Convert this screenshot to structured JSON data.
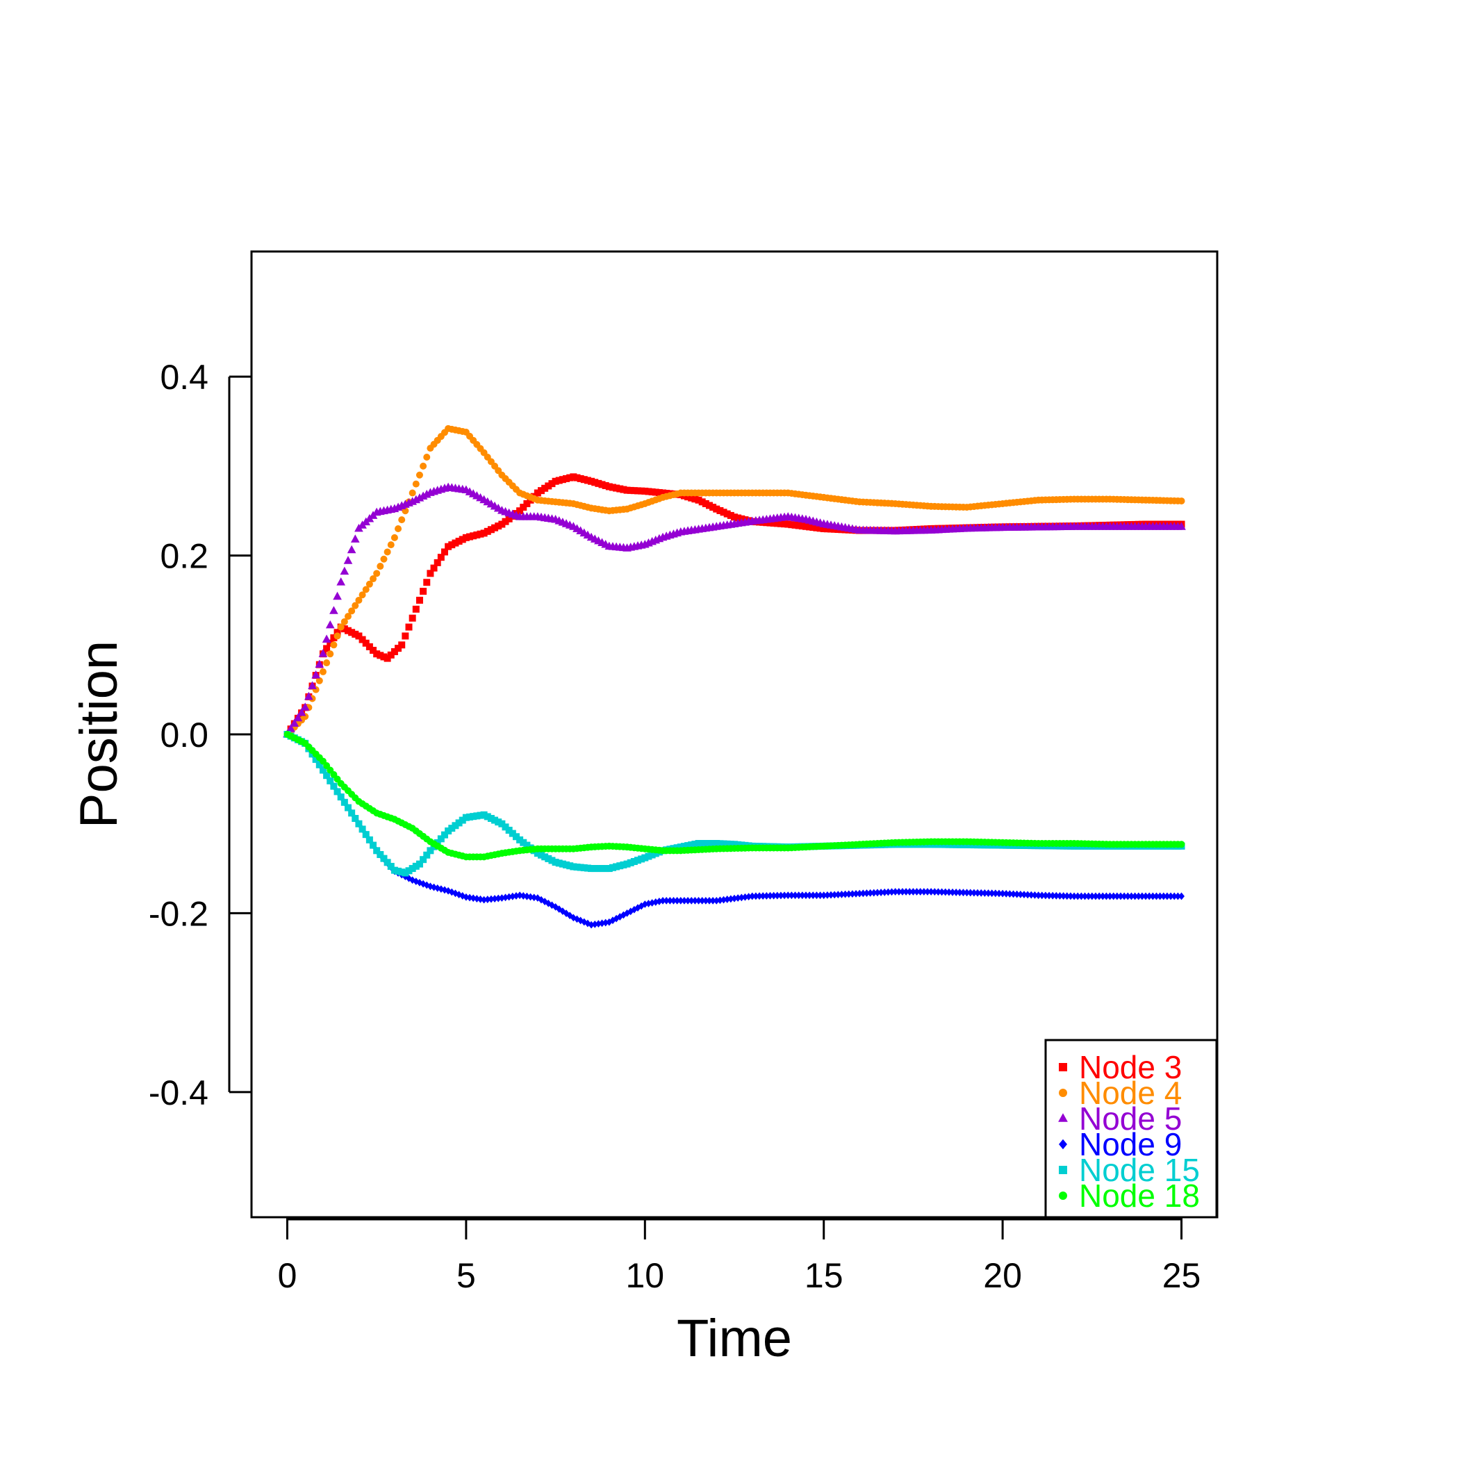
{
  "chart_data": {
    "type": "scatter",
    "title": "",
    "xlabel": "Time",
    "ylabel": "Position",
    "xlim": [
      -1,
      26
    ],
    "ylim": [
      -0.54,
      0.54
    ],
    "xticks": [
      0,
      5,
      10,
      15,
      20,
      25
    ],
    "xtick_labels": [
      "0",
      "5",
      "10",
      "15",
      "20",
      "25"
    ],
    "yticks": [
      -0.4,
      -0.2,
      0.0,
      0.2,
      0.4
    ],
    "ytick_labels": [
      "-0.4",
      "-0.2",
      "0.0",
      "0.2",
      "0.4"
    ],
    "grid": false,
    "legend_position": "bottom-right",
    "series": [
      {
        "name": "Node 3",
        "color": "#ff0000",
        "marker": "square",
        "points": [
          [
            0,
            0
          ],
          [
            0.5,
            0.03
          ],
          [
            1.0,
            0.09
          ],
          [
            1.5,
            0.12
          ],
          [
            2.0,
            0.11
          ],
          [
            2.5,
            0.09
          ],
          [
            2.8,
            0.085
          ],
          [
            3.2,
            0.1
          ],
          [
            3.6,
            0.14
          ],
          [
            4.0,
            0.18
          ],
          [
            4.5,
            0.21
          ],
          [
            5.0,
            0.22
          ],
          [
            5.5,
            0.225
          ],
          [
            6.0,
            0.235
          ],
          [
            6.5,
            0.25
          ],
          [
            7.0,
            0.27
          ],
          [
            7.5,
            0.283
          ],
          [
            8.0,
            0.288
          ],
          [
            8.5,
            0.283
          ],
          [
            9.0,
            0.277
          ],
          [
            9.5,
            0.273
          ],
          [
            10.0,
            0.272
          ],
          [
            10.5,
            0.27
          ],
          [
            11.0,
            0.268
          ],
          [
            11.5,
            0.262
          ],
          [
            12.0,
            0.252
          ],
          [
            12.5,
            0.243
          ],
          [
            13.0,
            0.238
          ],
          [
            14.0,
            0.235
          ],
          [
            15.0,
            0.23
          ],
          [
            16.0,
            0.228
          ],
          [
            17.0,
            0.228
          ],
          [
            18.0,
            0.23
          ],
          [
            20.0,
            0.232
          ],
          [
            22.0,
            0.233
          ],
          [
            24.0,
            0.235
          ],
          [
            25.0,
            0.235
          ]
        ]
      },
      {
        "name": "Node 4",
        "color": "#ff8c00",
        "marker": "circle",
        "points": [
          [
            0,
            0
          ],
          [
            0.5,
            0.02
          ],
          [
            1.0,
            0.07
          ],
          [
            1.5,
            0.12
          ],
          [
            2.0,
            0.15
          ],
          [
            2.5,
            0.18
          ],
          [
            3.0,
            0.22
          ],
          [
            3.5,
            0.27
          ],
          [
            4.0,
            0.32
          ],
          [
            4.5,
            0.342
          ],
          [
            5.0,
            0.338
          ],
          [
            5.5,
            0.315
          ],
          [
            6.0,
            0.29
          ],
          [
            6.5,
            0.27
          ],
          [
            7.0,
            0.262
          ],
          [
            7.5,
            0.26
          ],
          [
            8.0,
            0.258
          ],
          [
            8.5,
            0.253
          ],
          [
            9.0,
            0.25
          ],
          [
            9.5,
            0.252
          ],
          [
            10.0,
            0.258
          ],
          [
            10.5,
            0.265
          ],
          [
            11.0,
            0.27
          ],
          [
            12.0,
            0.27
          ],
          [
            13.0,
            0.27
          ],
          [
            14.0,
            0.27
          ],
          [
            15.0,
            0.265
          ],
          [
            16.0,
            0.26
          ],
          [
            17.0,
            0.258
          ],
          [
            18.0,
            0.255
          ],
          [
            19.0,
            0.254
          ],
          [
            20.0,
            0.258
          ],
          [
            21.0,
            0.262
          ],
          [
            22.0,
            0.263
          ],
          [
            23.0,
            0.263
          ],
          [
            24.0,
            0.262
          ],
          [
            25.0,
            0.261
          ]
        ]
      },
      {
        "name": "Node 5",
        "color": "#9400d3",
        "marker": "triangle",
        "points": [
          [
            0,
            0
          ],
          [
            0.5,
            0.03
          ],
          [
            1.0,
            0.09
          ],
          [
            1.5,
            0.17
          ],
          [
            2.0,
            0.23
          ],
          [
            2.5,
            0.248
          ],
          [
            3.0,
            0.252
          ],
          [
            3.5,
            0.26
          ],
          [
            4.0,
            0.27
          ],
          [
            4.5,
            0.276
          ],
          [
            5.0,
            0.273
          ],
          [
            5.5,
            0.262
          ],
          [
            6.0,
            0.25
          ],
          [
            6.5,
            0.243
          ],
          [
            7.0,
            0.243
          ],
          [
            7.5,
            0.24
          ],
          [
            8.0,
            0.232
          ],
          [
            8.5,
            0.22
          ],
          [
            9.0,
            0.21
          ],
          [
            9.5,
            0.208
          ],
          [
            10.0,
            0.212
          ],
          [
            10.5,
            0.22
          ],
          [
            11.0,
            0.226
          ],
          [
            12.0,
            0.232
          ],
          [
            13.0,
            0.238
          ],
          [
            14.0,
            0.243
          ],
          [
            14.5,
            0.24
          ],
          [
            15.0,
            0.235
          ],
          [
            16.0,
            0.228
          ],
          [
            17.0,
            0.227
          ],
          [
            18.0,
            0.228
          ],
          [
            19.0,
            0.23
          ],
          [
            20.0,
            0.231
          ],
          [
            22.0,
            0.232
          ],
          [
            24.0,
            0.232
          ],
          [
            25.0,
            0.232
          ]
        ]
      },
      {
        "name": "Node 9",
        "color": "#0000ff",
        "marker": "diamond",
        "points": [
          [
            0,
            0
          ],
          [
            0.5,
            -0.01
          ],
          [
            1.0,
            -0.04
          ],
          [
            1.5,
            -0.07
          ],
          [
            2.0,
            -0.1
          ],
          [
            2.5,
            -0.13
          ],
          [
            3.0,
            -0.153
          ],
          [
            3.5,
            -0.163
          ],
          [
            4.0,
            -0.17
          ],
          [
            4.5,
            -0.175
          ],
          [
            5.0,
            -0.182
          ],
          [
            5.5,
            -0.185
          ],
          [
            6.0,
            -0.183
          ],
          [
            6.5,
            -0.18
          ],
          [
            7.0,
            -0.183
          ],
          [
            7.5,
            -0.193
          ],
          [
            8.0,
            -0.205
          ],
          [
            8.5,
            -0.213
          ],
          [
            9.0,
            -0.21
          ],
          [
            9.5,
            -0.2
          ],
          [
            10.0,
            -0.19
          ],
          [
            10.5,
            -0.186
          ],
          [
            11.0,
            -0.186
          ],
          [
            12.0,
            -0.186
          ],
          [
            13.0,
            -0.181
          ],
          [
            14.0,
            -0.18
          ],
          [
            15.0,
            -0.18
          ],
          [
            16.0,
            -0.178
          ],
          [
            17.0,
            -0.176
          ],
          [
            18.0,
            -0.176
          ],
          [
            19.0,
            -0.177
          ],
          [
            20.0,
            -0.178
          ],
          [
            21.0,
            -0.18
          ],
          [
            22.0,
            -0.181
          ],
          [
            23.0,
            -0.181
          ],
          [
            24.0,
            -0.181
          ],
          [
            25.0,
            -0.181
          ]
        ]
      },
      {
        "name": "Node 15",
        "color": "#00ced1",
        "marker": "square",
        "points": [
          [
            0,
            0
          ],
          [
            0.5,
            -0.01
          ],
          [
            1.0,
            -0.04
          ],
          [
            1.5,
            -0.07
          ],
          [
            2.0,
            -0.1
          ],
          [
            2.5,
            -0.13
          ],
          [
            3.0,
            -0.152
          ],
          [
            3.3,
            -0.155
          ],
          [
            3.7,
            -0.145
          ],
          [
            4.0,
            -0.13
          ],
          [
            4.5,
            -0.108
          ],
          [
            5.0,
            -0.093
          ],
          [
            5.5,
            -0.09
          ],
          [
            6.0,
            -0.1
          ],
          [
            6.5,
            -0.118
          ],
          [
            7.0,
            -0.133
          ],
          [
            7.5,
            -0.143
          ],
          [
            8.0,
            -0.148
          ],
          [
            8.5,
            -0.15
          ],
          [
            9.0,
            -0.15
          ],
          [
            9.5,
            -0.145
          ],
          [
            10.0,
            -0.138
          ],
          [
            10.5,
            -0.13
          ],
          [
            11.0,
            -0.126
          ],
          [
            11.5,
            -0.122
          ],
          [
            12.0,
            -0.122
          ],
          [
            12.5,
            -0.123
          ],
          [
            13.0,
            -0.125
          ],
          [
            14.0,
            -0.126
          ],
          [
            15.0,
            -0.125
          ],
          [
            16.0,
            -0.124
          ],
          [
            17.0,
            -0.123
          ],
          [
            18.0,
            -0.123
          ],
          [
            20.0,
            -0.124
          ],
          [
            22.0,
            -0.125
          ],
          [
            24.0,
            -0.125
          ],
          [
            25.0,
            -0.125
          ]
        ]
      },
      {
        "name": "Node 18",
        "color": "#00ff00",
        "marker": "circle",
        "points": [
          [
            0,
            0
          ],
          [
            0.5,
            -0.01
          ],
          [
            1.0,
            -0.03
          ],
          [
            1.5,
            -0.055
          ],
          [
            2.0,
            -0.075
          ],
          [
            2.5,
            -0.088
          ],
          [
            3.0,
            -0.095
          ],
          [
            3.5,
            -0.105
          ],
          [
            4.0,
            -0.12
          ],
          [
            4.5,
            -0.132
          ],
          [
            5.0,
            -0.137
          ],
          [
            5.5,
            -0.137
          ],
          [
            6.0,
            -0.133
          ],
          [
            6.5,
            -0.13
          ],
          [
            7.0,
            -0.128
          ],
          [
            7.5,
            -0.128
          ],
          [
            8.0,
            -0.128
          ],
          [
            8.5,
            -0.126
          ],
          [
            9.0,
            -0.125
          ],
          [
            9.5,
            -0.126
          ],
          [
            10.0,
            -0.128
          ],
          [
            10.5,
            -0.13
          ],
          [
            11.0,
            -0.13
          ],
          [
            12.0,
            -0.128
          ],
          [
            13.0,
            -0.127
          ],
          [
            14.0,
            -0.127
          ],
          [
            15.0,
            -0.125
          ],
          [
            16.0,
            -0.123
          ],
          [
            17.0,
            -0.121
          ],
          [
            18.0,
            -0.12
          ],
          [
            19.0,
            -0.12
          ],
          [
            20.0,
            -0.121
          ],
          [
            21.0,
            -0.122
          ],
          [
            22.0,
            -0.122
          ],
          [
            23.0,
            -0.123
          ],
          [
            24.0,
            -0.123
          ],
          [
            25.0,
            -0.123
          ]
        ]
      }
    ]
  }
}
